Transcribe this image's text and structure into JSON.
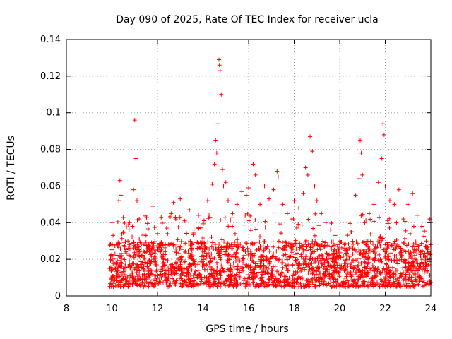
{
  "chart_data": {
    "type": "scatter",
    "title": "Day 090 of 2025, Rate Of TEC Index for receiver ucla",
    "xlabel": "GPS time / hours",
    "ylabel": "ROTI / TECUs",
    "xlim": [
      8,
      24
    ],
    "ylim": [
      0,
      0.14
    ],
    "x_ticks": [
      "8",
      "10",
      "12",
      "14",
      "16",
      "18",
      "20",
      "22",
      "24"
    ],
    "y_ticks": [
      "0",
      "0.02",
      "0.04",
      "0.06",
      "0.08",
      "0.1",
      "0.12",
      "0.14"
    ],
    "grid": true,
    "marker": "+",
    "color": "#ff0000",
    "points": [
      [
        9.9,
        0.015
      ],
      [
        9.95,
        0.022
      ],
      [
        10.0,
        0.04
      ],
      [
        10.05,
        0.033
      ],
      [
        10.1,
        0.018
      ],
      [
        10.2,
        0.028
      ],
      [
        10.3,
        0.052
      ],
      [
        10.35,
        0.063
      ],
      [
        10.4,
        0.055
      ],
      [
        10.5,
        0.035
      ],
      [
        10.6,
        0.024
      ],
      [
        10.7,
        0.03
      ],
      [
        10.8,
        0.016
      ],
      [
        10.9,
        0.038
      ],
      [
        10.95,
        0.058
      ],
      [
        11.0,
        0.096
      ],
      [
        11.05,
        0.075
      ],
      [
        11.1,
        0.052
      ],
      [
        11.2,
        0.031
      ],
      [
        11.3,
        0.022
      ],
      [
        11.5,
        0.033
      ],
      [
        11.6,
        0.026
      ],
      [
        11.8,
        0.049
      ],
      [
        12.0,
        0.034
      ],
      [
        12.2,
        0.028
      ],
      [
        12.4,
        0.037
      ],
      [
        12.6,
        0.045
      ],
      [
        12.7,
        0.051
      ],
      [
        12.8,
        0.042
      ],
      [
        13.0,
        0.053
      ],
      [
        13.2,
        0.041
      ],
      [
        13.4,
        0.047
      ],
      [
        13.6,
        0.036
      ],
      [
        13.8,
        0.044
      ],
      [
        14.0,
        0.048
      ],
      [
        14.2,
        0.052
      ],
      [
        14.4,
        0.061
      ],
      [
        14.5,
        0.072
      ],
      [
        14.55,
        0.085
      ],
      [
        14.6,
        0.078
      ],
      [
        14.65,
        0.094
      ],
      [
        14.7,
        0.129
      ],
      [
        14.72,
        0.126
      ],
      [
        14.75,
        0.123
      ],
      [
        14.8,
        0.11
      ],
      [
        14.85,
        0.069
      ],
      [
        14.9,
        0.06
      ],
      [
        15.0,
        0.062
      ],
      [
        15.1,
        0.052
      ],
      [
        15.3,
        0.045
      ],
      [
        15.5,
        0.05
      ],
      [
        15.7,
        0.057
      ],
      [
        15.9,
        0.055
      ],
      [
        16.0,
        0.059
      ],
      [
        16.2,
        0.072
      ],
      [
        16.3,
        0.066
      ],
      [
        16.5,
        0.05
      ],
      [
        16.7,
        0.06
      ],
      [
        16.9,
        0.053
      ],
      [
        17.1,
        0.058
      ],
      [
        17.25,
        0.068
      ],
      [
        17.3,
        0.065
      ],
      [
        17.5,
        0.05
      ],
      [
        17.7,
        0.045
      ],
      [
        17.9,
        0.042
      ],
      [
        18.0,
        0.052
      ],
      [
        18.2,
        0.048
      ],
      [
        18.4,
        0.056
      ],
      [
        18.5,
        0.07
      ],
      [
        18.6,
        0.066
      ],
      [
        18.7,
        0.087
      ],
      [
        18.8,
        0.079
      ],
      [
        18.9,
        0.06
      ],
      [
        19.0,
        0.052
      ],
      [
        19.2,
        0.045
      ],
      [
        19.4,
        0.04
      ],
      [
        19.6,
        0.036
      ],
      [
        19.8,
        0.033
      ],
      [
        20.0,
        0.03
      ],
      [
        20.2,
        0.028
      ],
      [
        20.5,
        0.035
      ],
      [
        20.7,
        0.055
      ],
      [
        20.85,
        0.064
      ],
      [
        20.9,
        0.085
      ],
      [
        20.95,
        0.078
      ],
      [
        21.0,
        0.066
      ],
      [
        21.1,
        0.04
      ],
      [
        21.3,
        0.045
      ],
      [
        21.5,
        0.05
      ],
      [
        21.7,
        0.062
      ],
      [
        21.85,
        0.075
      ],
      [
        21.9,
        0.094
      ],
      [
        21.95,
        0.088
      ],
      [
        22.0,
        0.06
      ],
      [
        22.2,
        0.052
      ],
      [
        22.4,
        0.05
      ],
      [
        22.6,
        0.058
      ],
      [
        22.8,
        0.042
      ],
      [
        23.0,
        0.05
      ],
      [
        23.2,
        0.056
      ],
      [
        23.4,
        0.044
      ],
      [
        23.6,
        0.038
      ],
      [
        23.8,
        0.03
      ],
      [
        23.95,
        0.042
      ],
      [
        24.0,
        0.04
      ]
    ],
    "dense_band": {
      "x_range": [
        9.9,
        24.0
      ],
      "y_range": [
        0.005,
        0.03
      ]
    }
  }
}
